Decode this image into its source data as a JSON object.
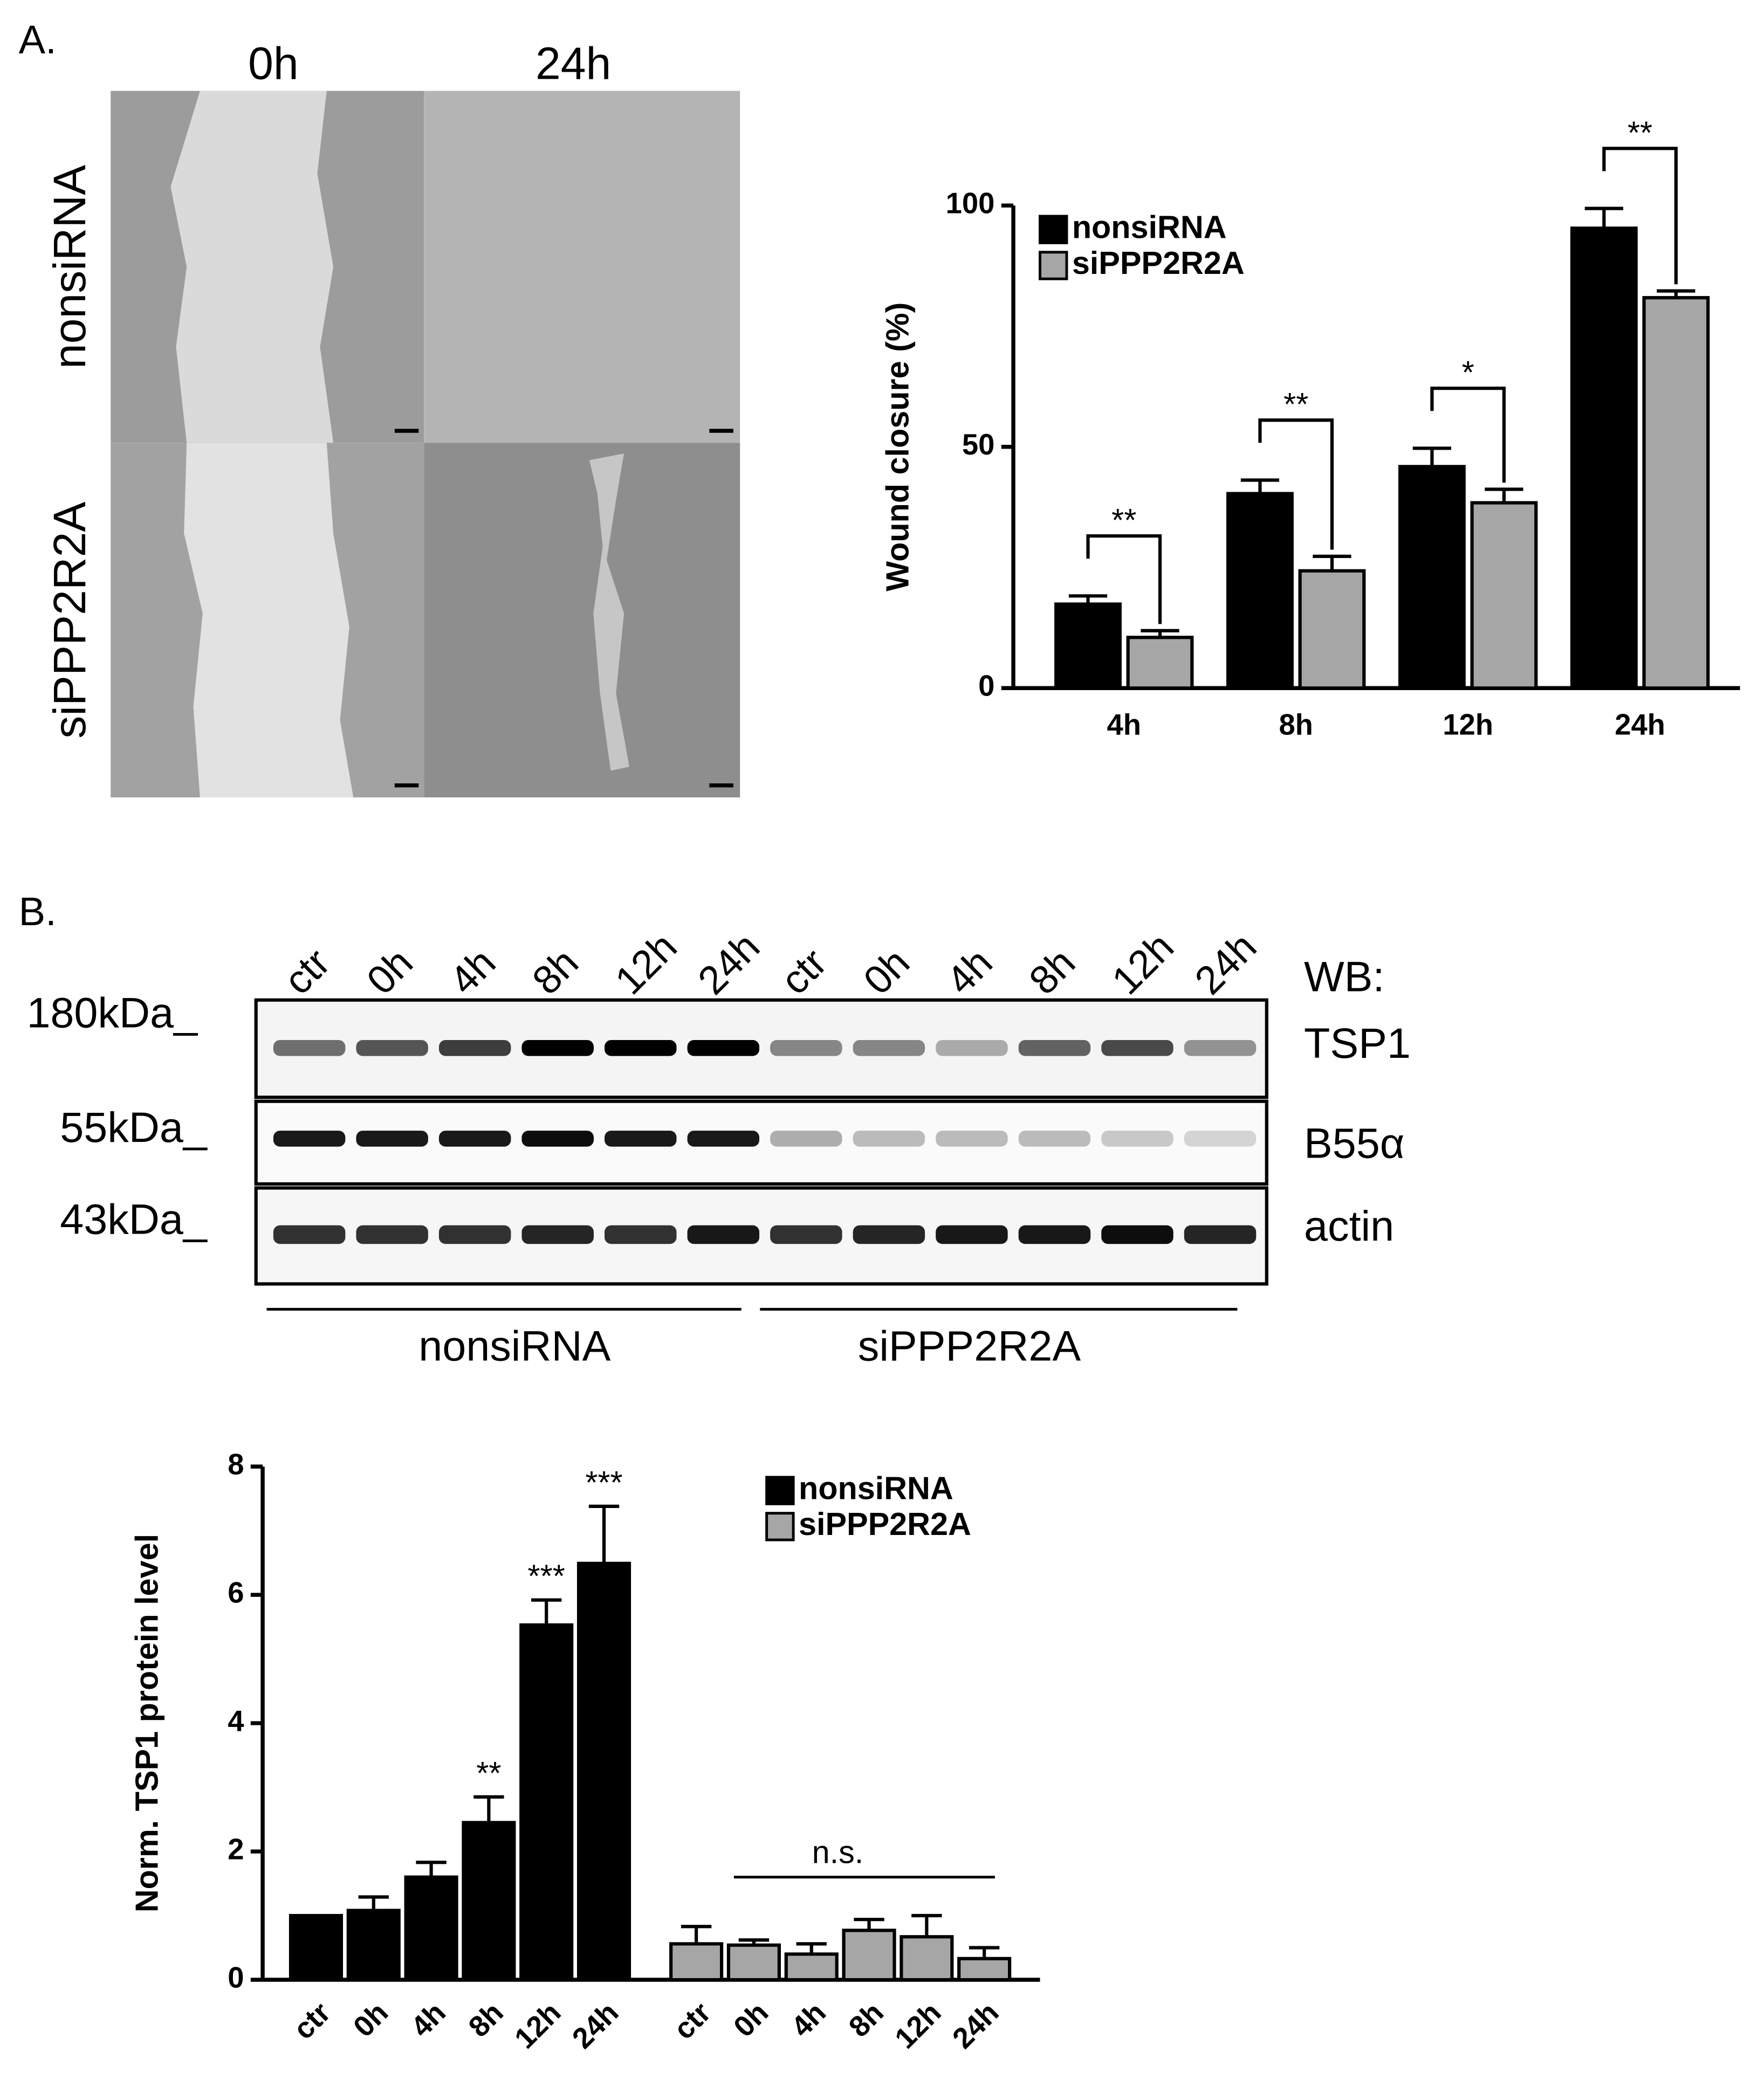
{
  "panel_a": {
    "label": "A.",
    "columns": [
      "0h",
      "24h"
    ],
    "rows": [
      "nonsiRNA",
      "siPPP2R2A"
    ]
  },
  "panel_b": {
    "label": "B.",
    "lanes": [
      "ctr",
      "0h",
      "4h",
      "8h",
      "12h",
      "24h",
      "ctr",
      "0h",
      "4h",
      "8h",
      "12h",
      "24h"
    ],
    "markers": [
      "180kDa_",
      "55kDa_",
      "43kDa_"
    ],
    "wb_label": "WB:",
    "blots": [
      "TSP1",
      "B55α",
      "actin"
    ],
    "groups": [
      "nonsiRNA",
      "siPPP2R2A"
    ]
  },
  "chart_data": [
    {
      "type": "bar",
      "ylabel": "Wound closure (%)",
      "categories": [
        "4h",
        "8h",
        "12h",
        "24h"
      ],
      "series": [
        {
          "name": "nonsiRNA",
          "color": "#000000",
          "values": [
            17.4,
            40.3,
            45.9,
            95.3
          ],
          "errors": [
            1.7,
            2.8,
            3.8,
            4.1
          ]
        },
        {
          "name": "siPPP2R2A",
          "color": "#a6a6a6",
          "values": [
            10.5,
            24.3,
            38.4,
            80.9
          ],
          "errors": [
            1.4,
            3.0,
            2.8,
            1.4
          ]
        }
      ],
      "ylim": [
        0,
        100
      ],
      "yticks": [
        0,
        50,
        100
      ],
      "legend": "upper left",
      "significance": [
        "**",
        "**",
        "*",
        "**"
      ]
    },
    {
      "type": "bar",
      "ylabel": "Norm. TSP1 protein level",
      "categories": [
        "ctr",
        "0h",
        "4h",
        "8h",
        "12h",
        "24h",
        "ctr",
        "0h",
        "4h",
        "8h",
        "12h",
        "24h"
      ],
      "series": [
        {
          "name": "nonsiRNA",
          "color": "#000000",
          "values": [
            1.0,
            1.08,
            1.6,
            2.45,
            5.53,
            6.49,
            null,
            null,
            null,
            null,
            null,
            null
          ],
          "errors": [
            null,
            0.21,
            0.23,
            0.4,
            0.39,
            0.89,
            null,
            null,
            null,
            null,
            null,
            null
          ]
        },
        {
          "name": "siPPP2R2A",
          "color": "#a6a6a6",
          "values": [
            null,
            null,
            null,
            null,
            null,
            null,
            0.56,
            0.54,
            0.4,
            0.77,
            0.67,
            0.33
          ],
          "errors": [
            null,
            null,
            null,
            null,
            null,
            null,
            0.27,
            0.08,
            0.16,
            0.17,
            0.33,
            0.17
          ]
        }
      ],
      "ylim": [
        0,
        8
      ],
      "yticks": [
        0,
        2,
        4,
        6,
        8
      ],
      "legend": "upper right",
      "significance": [
        null,
        null,
        null,
        "**",
        "***",
        "***",
        null,
        null,
        null,
        null,
        null,
        null
      ],
      "group_annotation": "n.s."
    }
  ]
}
